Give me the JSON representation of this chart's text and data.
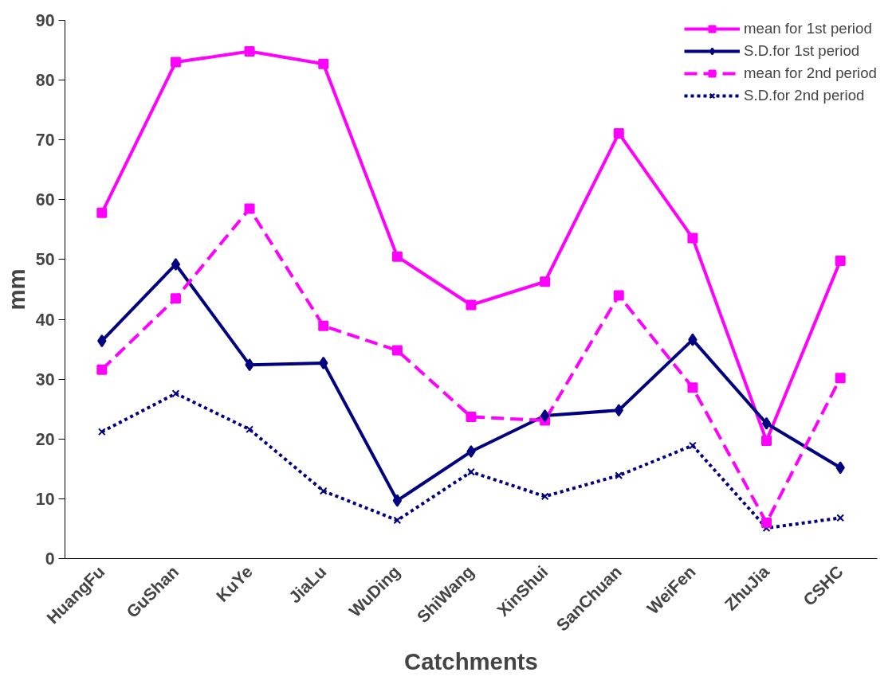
{
  "chart_data": {
    "type": "line",
    "xlabel": "Catchments",
    "ylabel": "mm",
    "categories": [
      "HuangFu",
      "GuShan",
      "KuYe",
      "JiaLu",
      "WuDing",
      "ShiWang",
      "XinShui",
      "SanChuan",
      "WeiFen",
      "ZhuJia",
      "CSHC"
    ],
    "ylim": [
      0,
      90
    ],
    "yticks": [
      0,
      10,
      20,
      30,
      40,
      50,
      60,
      70,
      80,
      90
    ],
    "grid": false,
    "legend": "top right",
    "series": [
      {
        "name": "mean for 1st period",
        "color": "#ff00ff",
        "marker": "square",
        "line_style": "solid",
        "values": [
          57.8,
          83.0,
          84.8,
          82.7,
          50.5,
          42.4,
          46.3,
          71.1,
          53.6,
          19.7,
          49.8
        ]
      },
      {
        "name": "S.D.for 1st period",
        "color": "#000080",
        "marker": "diamond",
        "line_style": "solid",
        "values": [
          36.4,
          49.2,
          32.4,
          32.7,
          9.7,
          17.9,
          23.9,
          24.8,
          36.6,
          22.6,
          15.2
        ]
      },
      {
        "name": "mean for 2nd period",
        "color": "#ff00ff",
        "marker": "square",
        "line_style": "dashed",
        "values": [
          31.6,
          43.5,
          58.5,
          38.9,
          34.8,
          23.7,
          23.1,
          44.0,
          28.6,
          6.0,
          30.2
        ]
      },
      {
        "name": "S.D.for 2nd period",
        "color": "#000080",
        "marker": "cross",
        "line_style": "dotted",
        "values": [
          21.2,
          27.6,
          21.6,
          11.3,
          6.4,
          14.5,
          10.4,
          13.9,
          18.9,
          5.1,
          6.8
        ]
      }
    ]
  }
}
